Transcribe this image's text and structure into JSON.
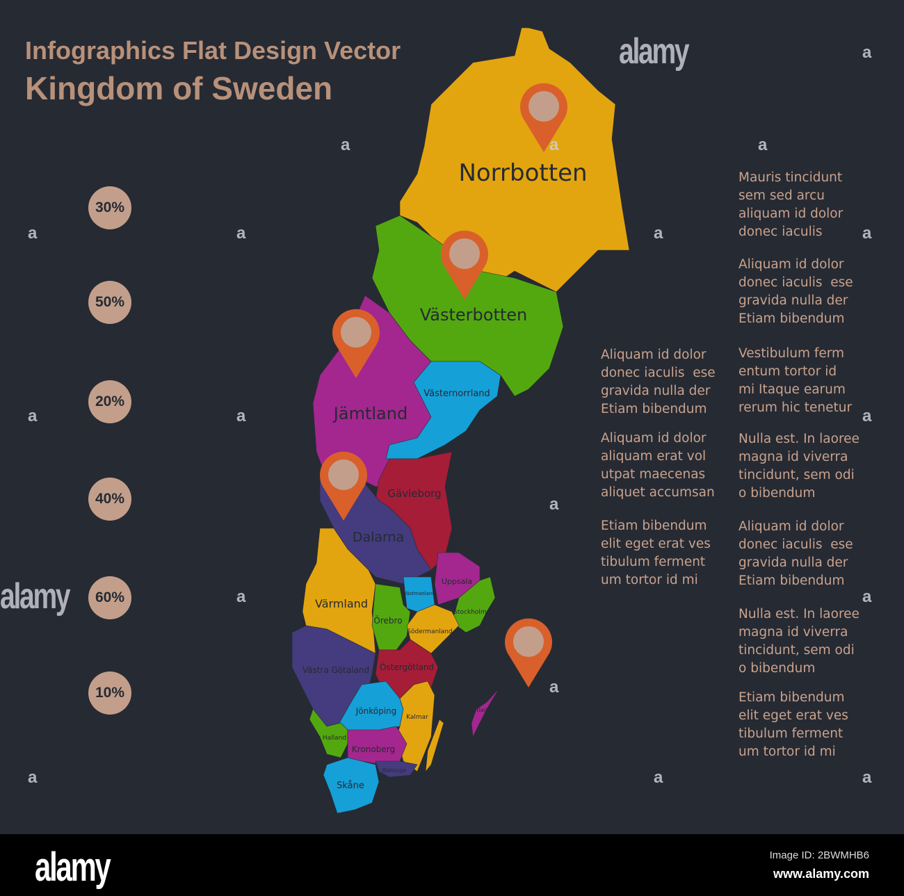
{
  "title": {
    "line1": "Infographics Flat Design Vector",
    "line2": "Kingdom of Sweden"
  },
  "percentages": [
    "30%",
    "50%",
    "20%",
    "40%",
    "60%",
    "10%"
  ],
  "colors": {
    "background": "#262a33",
    "yellow": "#e3a50f",
    "green": "#53a80f",
    "magenta": "#a3278f",
    "cyan": "#15a0d8",
    "crimson": "#a61d38",
    "indigo": "#443c7e",
    "pin": "#d9602b",
    "pin_center": "#c39f8b",
    "text": "#c9a38d"
  },
  "regions": [
    {
      "name": "Norrbotten",
      "color": "#e3a50f"
    },
    {
      "name": "Västerbotten",
      "color": "#53a80f"
    },
    {
      "name": "Jämtland",
      "color": "#a3278f"
    },
    {
      "name": "Västernorrland",
      "color": "#15a0d8"
    },
    {
      "name": "Gävleborg",
      "color": "#a61d38"
    },
    {
      "name": "Dalarna",
      "color": "#443c7e"
    },
    {
      "name": "Värmland",
      "color": "#e3a50f"
    },
    {
      "name": "Örebro",
      "color": "#53a80f"
    },
    {
      "name": "Västmanland",
      "color": "#15a0d8"
    },
    {
      "name": "Uppsala",
      "color": "#a3278f"
    },
    {
      "name": "Stockholm",
      "color": "#53a80f"
    },
    {
      "name": "Södermanland",
      "color": "#e3a50f"
    },
    {
      "name": "Västra Götaland",
      "color": "#443c7e"
    },
    {
      "name": "Östergötland",
      "color": "#a61d38"
    },
    {
      "name": "Jönköping",
      "color": "#15a0d8"
    },
    {
      "name": "Kalmar",
      "color": "#e3a50f"
    },
    {
      "name": "Halland",
      "color": "#53a80f"
    },
    {
      "name": "Kronoberg",
      "color": "#a3278f"
    },
    {
      "name": "Blekinge",
      "color": "#443c7e"
    },
    {
      "name": "Skåne",
      "color": "#15a0d8"
    },
    {
      "name": "Öland",
      "color": "#e3a50f"
    },
    {
      "name": "Gotland",
      "color": "#a3278f"
    }
  ],
  "pins": [
    "Norrbotten",
    "Västerbotten",
    "Jämtland",
    "Dalarna",
    "Gotland"
  ],
  "text_blocks": {
    "middle": [
      "Aliquam id dolor\ndonec iaculis  ese\ngravida nulla der\nEtiam bibendum",
      "Aliquam id dolor\naliquam erat vol\nutpat maecenas\naliquet accumsan",
      "Etiam bibendum\nelit eget erat ves\ntibulum ferment\num tortor id mi"
    ],
    "right": [
      "Mauris tincidunt\nsem sed arcu\naliquam id dolor\ndonec iaculis",
      "Aliquam id dolor\ndonec iaculis  ese\ngravida nulla der\nEtiam bibendum",
      "Vestibulum ferm\nentum tortor id\nmi Itaque earum\nrerum hic tenetur",
      "Nulla est. In laoree\nmagna id viverra\ntincidunt, sem odi\no bibendum",
      "Aliquam id dolor\ndonec iaculis  ese\ngravida nulla der\nEtiam bibendum",
      "Nulla est. In laoree\nmagna id viverra\ntincidunt, sem odi\no bibendum",
      "Etiam bibendum\nelit eget erat ves\ntibulum ferment\num tortor id mi"
    ]
  },
  "watermark": {
    "logo": "alamy",
    "mark": "a"
  },
  "footer": {
    "logo": "alamy",
    "image_id": "Image ID: 2BWMHB6",
    "url": "www.alamy.com"
  }
}
